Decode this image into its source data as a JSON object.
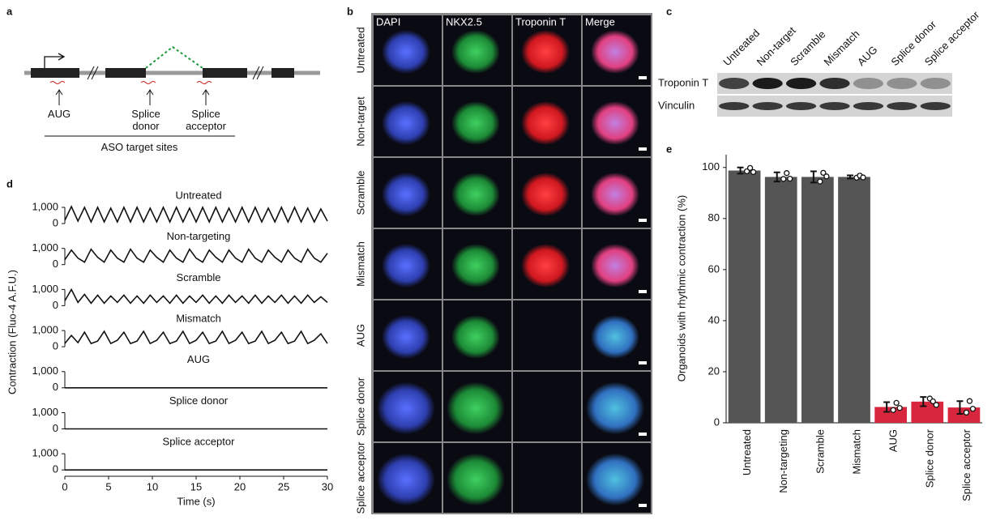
{
  "panel_labels": [
    "a",
    "b",
    "c",
    "d",
    "e"
  ],
  "diagram": {
    "sites": [
      "AUG",
      "Splice donor",
      "Splice acceptor"
    ],
    "caption": "ASO target sites"
  },
  "microscopy": {
    "columns": [
      "DAPI",
      "NKX2.5",
      "Troponin T",
      "Merge"
    ],
    "rows": [
      "Untreated",
      "Non-target",
      "Scramble",
      "Mismatch",
      "AUG",
      "Splice donor",
      "Splice acceptor"
    ]
  },
  "blot": {
    "lanes": [
      "Untreated",
      "Non-target",
      "Scramble",
      "Mismatch",
      "AUG",
      "Splice donor",
      "Splice acceptor"
    ],
    "bands": [
      "Troponin T",
      "Vinculin"
    ]
  },
  "chart_data": [
    {
      "type": "line",
      "y_label": "Contraction (Fluo-4 A.F.U.)",
      "x_label": "Time (s)",
      "xlim": [
        0,
        30
      ],
      "xticks": [
        0,
        5,
        10,
        15,
        20,
        25,
        30
      ],
      "ylim": [
        0,
        1200
      ],
      "yticks": [
        0,
        {
          "value": 1000,
          "label": "1,000"
        }
      ],
      "x": [
        0,
        0.75,
        1.5,
        2.25,
        3,
        3.75,
        4.5,
        5.25,
        6,
        6.75,
        7.5,
        8.25,
        9,
        9.75,
        10.5,
        11.25,
        12,
        12.75,
        13.5,
        14.25,
        15,
        15.75,
        16.5,
        17.25,
        18,
        18.75,
        19.5,
        20.25,
        21,
        21.75,
        22.5,
        23.25,
        24,
        24.75,
        25.5,
        26.25,
        27,
        27.75,
        28.5,
        29.25,
        30
      ],
      "series": [
        {
          "name": "Untreated",
          "color": "#111111",
          "values": [
            200,
            1050,
            150,
            1000,
            100,
            1000,
            100,
            950,
            100,
            1000,
            100,
            1000,
            100,
            950,
            100,
            1000,
            100,
            1000,
            100,
            950,
            100,
            1000,
            100,
            1000,
            100,
            950,
            100,
            1000,
            100,
            1000,
            100,
            950,
            100,
            1000,
            100,
            1000,
            100,
            950,
            100,
            900,
            150
          ]
        },
        {
          "name": "Non-targeting",
          "color": "#111111",
          "values": [
            300,
            900,
            400,
            150,
            950,
            450,
            150,
            900,
            400,
            150,
            950,
            400,
            150,
            900,
            450,
            150,
            900,
            400,
            150,
            950,
            400,
            150,
            900,
            450,
            150,
            900,
            400,
            150,
            950,
            400,
            150,
            900,
            450,
            150,
            900,
            400,
            150,
            950,
            400,
            150,
            700
          ]
        },
        {
          "name": "Scramble",
          "color": "#111111",
          "values": [
            300,
            1000,
            200,
            700,
            150,
            650,
            150,
            600,
            200,
            650,
            150,
            600,
            150,
            650,
            200,
            600,
            150,
            650,
            150,
            600,
            200,
            650,
            150,
            600,
            150,
            650,
            200,
            600,
            150,
            650,
            150,
            600,
            200,
            650,
            150,
            600,
            150,
            650,
            200,
            550,
            200
          ]
        },
        {
          "name": "Mismatch",
          "color": "#111111",
          "values": [
            200,
            700,
            250,
            900,
            200,
            350,
            950,
            200,
            400,
            900,
            200,
            350,
            950,
            200,
            400,
            900,
            200,
            350,
            950,
            200,
            400,
            900,
            200,
            350,
            950,
            200,
            400,
            900,
            200,
            350,
            950,
            200,
            400,
            900,
            200,
            350,
            950,
            200,
            400,
            800,
            200
          ]
        },
        {
          "name": "AUG",
          "color": "#111111",
          "values": [
            0,
            0,
            0,
            0,
            0,
            0,
            0,
            0,
            0,
            0,
            0,
            0,
            0,
            0,
            0,
            0,
            0,
            0,
            0,
            0,
            0,
            0,
            0,
            0,
            0,
            0,
            0,
            0,
            0,
            0,
            0,
            0,
            0,
            0,
            0,
            0,
            0,
            0,
            0,
            0,
            0
          ]
        },
        {
          "name": "Splice donor",
          "color": "#111111",
          "values": [
            0,
            0,
            0,
            0,
            0,
            0,
            0,
            0,
            0,
            0,
            0,
            0,
            0,
            0,
            0,
            0,
            0,
            0,
            0,
            0,
            0,
            0,
            0,
            0,
            0,
            0,
            0,
            0,
            0,
            0,
            0,
            0,
            0,
            0,
            0,
            0,
            0,
            0,
            0,
            0,
            0
          ]
        },
        {
          "name": "Splice acceptor",
          "color": "#111111",
          "values": [
            0,
            0,
            0,
            0,
            0,
            0,
            0,
            0,
            0,
            0,
            0,
            0,
            0,
            0,
            0,
            0,
            0,
            0,
            0,
            0,
            0,
            0,
            0,
            0,
            0,
            0,
            0,
            0,
            0,
            0,
            0,
            0,
            0,
            0,
            0,
            0,
            0,
            0,
            0,
            0,
            0
          ]
        }
      ]
    },
    {
      "type": "bar",
      "y_label": "Organoids with rhythmic contraction (%)",
      "categories": [
        "Untreated",
        "Non-targeting",
        "Scramble",
        "Mismatch",
        "AUG",
        "Splice donor",
        "Splice acceptor"
      ],
      "values": [
        98.8,
        96.3,
        96.3,
        96.3,
        6.2,
        8.3,
        6.0
      ],
      "errors": [
        1.2,
        1.8,
        2.2,
        0.6,
        1.9,
        1.8,
        2.5
      ],
      "colors": [
        "#555555",
        "#555555",
        "#555555",
        "#555555",
        "#d7263d",
        "#d7263d",
        "#d7263d"
      ],
      "points": [
        [
          98.5,
          99.8,
          98.2
        ],
        [
          95.5,
          97.8,
          95.6
        ],
        [
          94.5,
          97.9,
          96.5
        ],
        [
          96.0,
          96.8,
          96.1
        ],
        [
          5.0,
          7.8,
          5.8
        ],
        [
          9.5,
          8.4,
          7.0
        ],
        [
          4.0,
          8.5,
          5.5
        ]
      ],
      "ylim": [
        0,
        105
      ],
      "yticks": [
        0,
        20,
        40,
        60,
        80,
        100
      ]
    }
  ]
}
